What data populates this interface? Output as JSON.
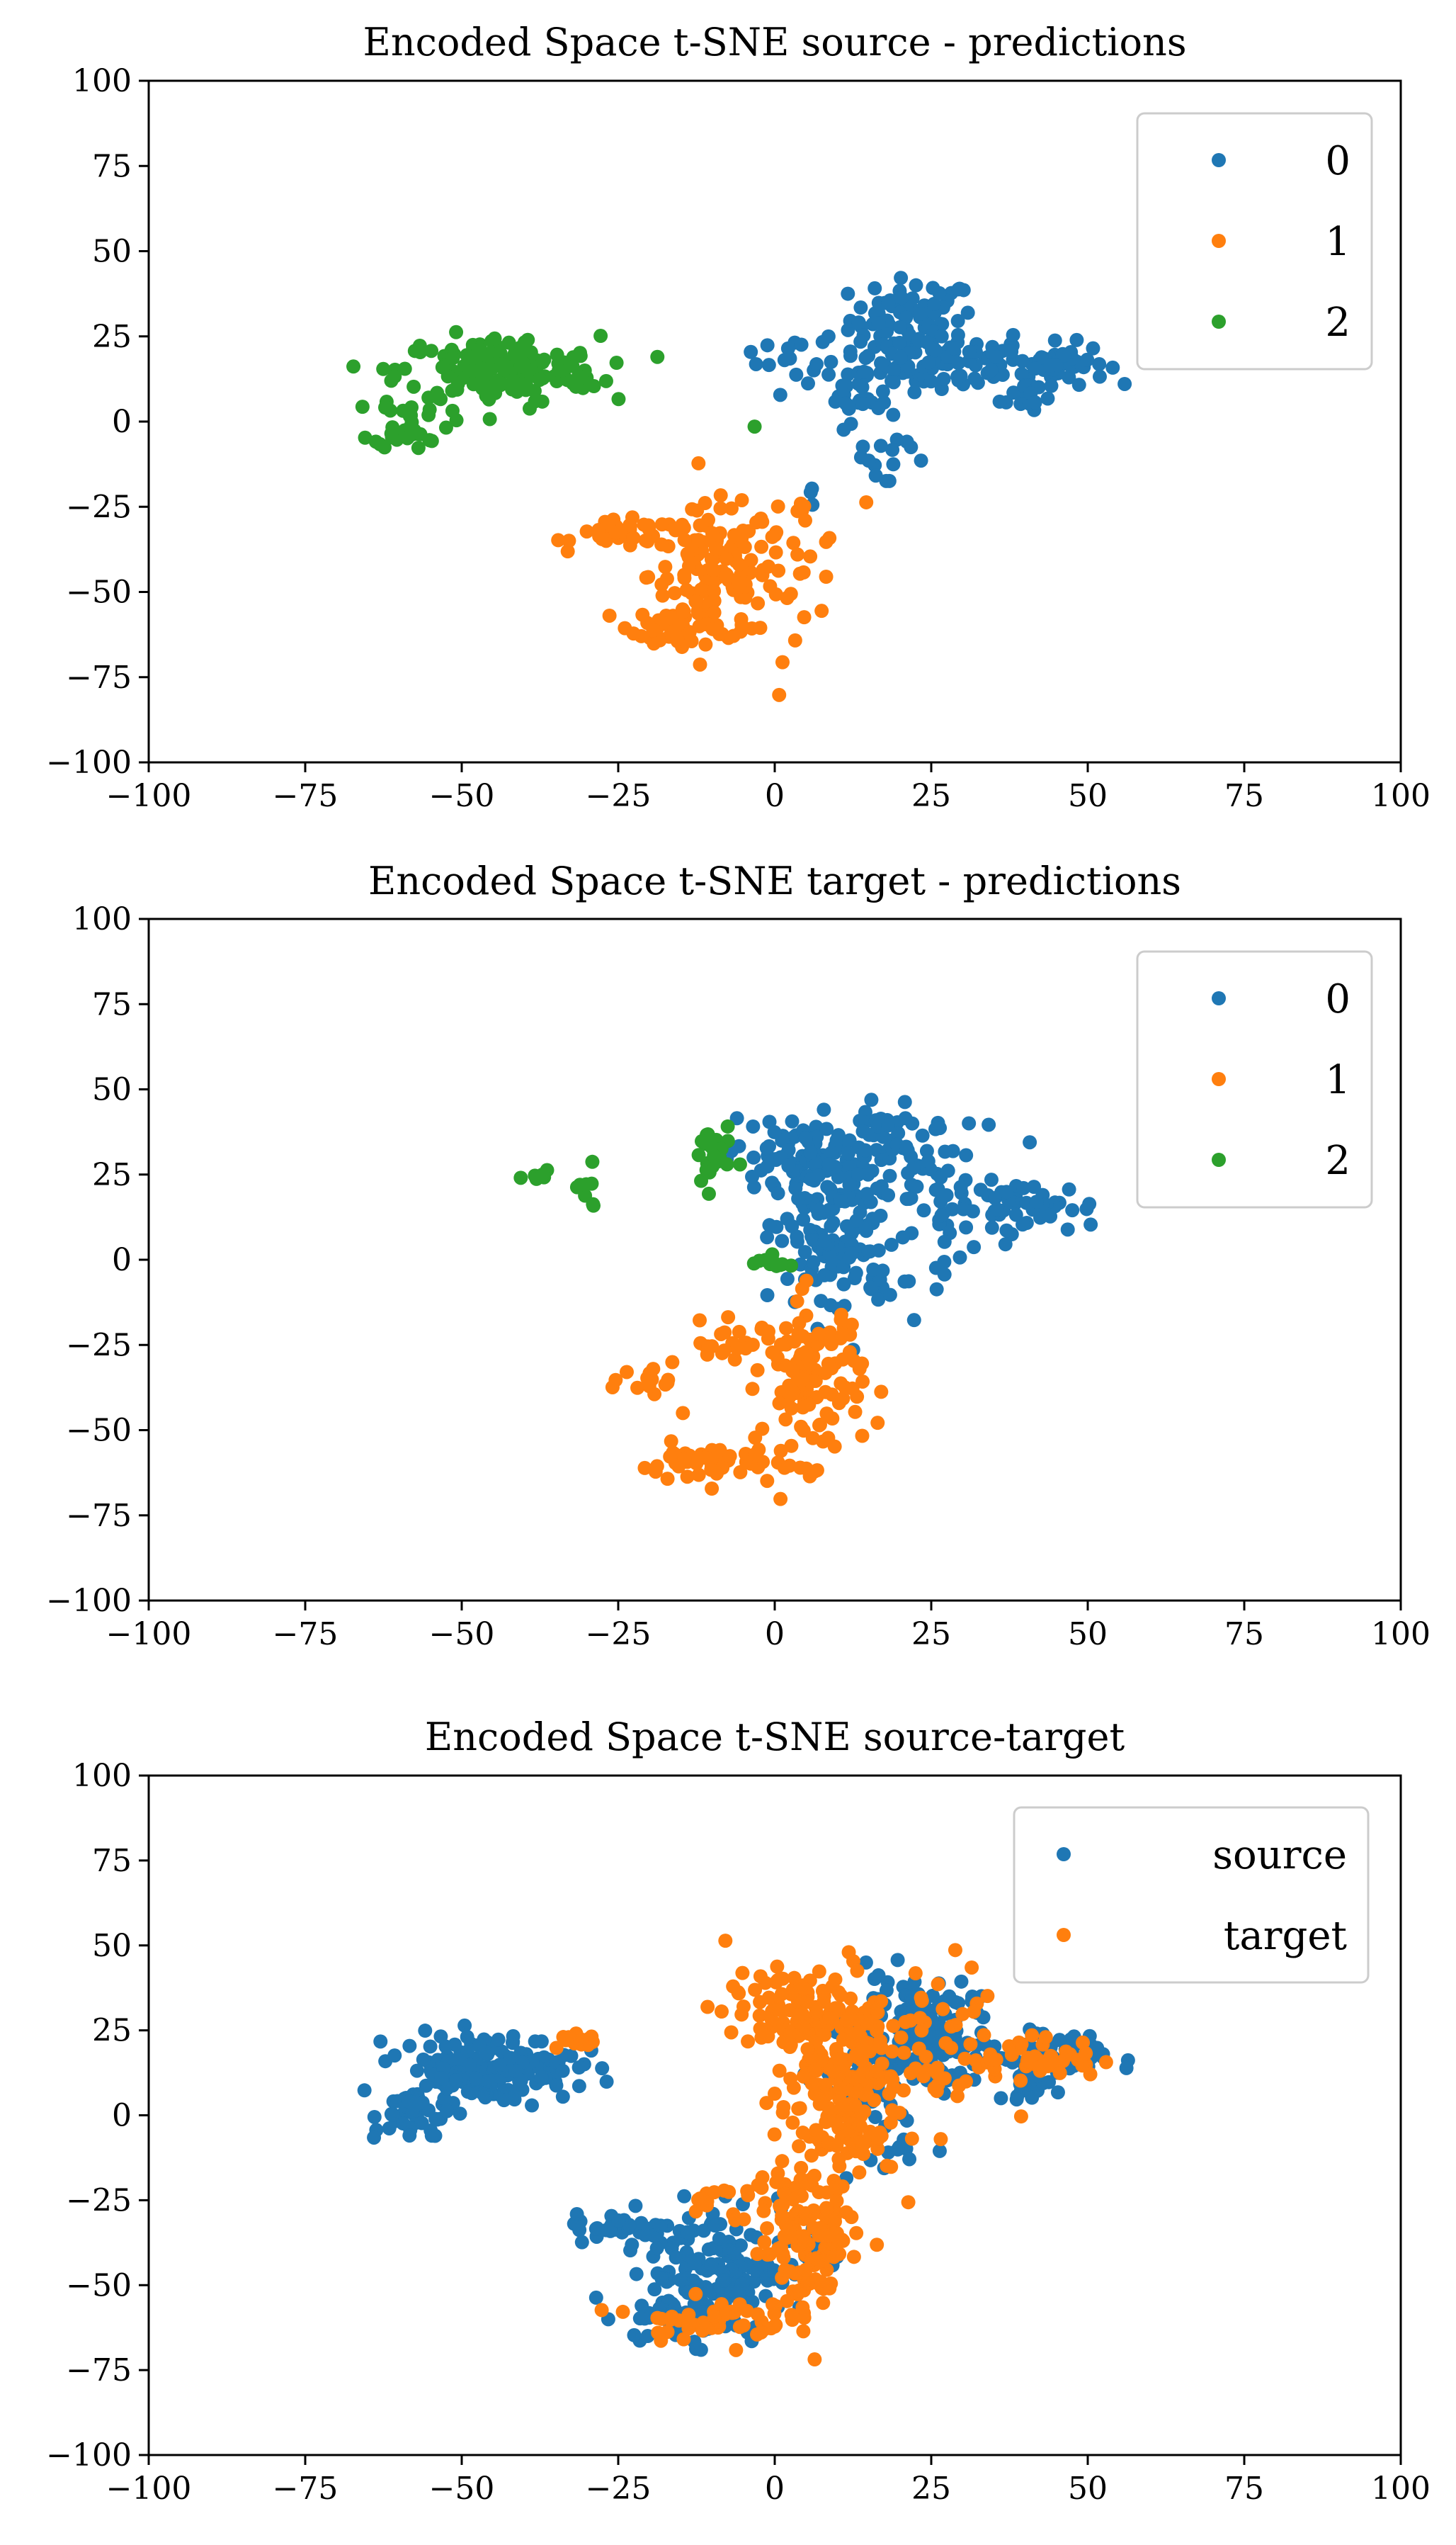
{
  "colors": {
    "c0": "#1f77b4",
    "c1": "#ff7f0e",
    "c2": "#2ca02c"
  },
  "chart_data": [
    {
      "type": "scatter",
      "title": "Encoded Space t-SNE source - predictions",
      "xlim": [
        -100,
        100
      ],
      "ylim": [
        -100,
        100
      ],
      "xticks": [
        "−100",
        "−75",
        "−50",
        "−25",
        "0",
        "25",
        "50",
        "75",
        "100"
      ],
      "yticks": [
        "100",
        "75",
        "50",
        "25",
        "0",
        "−25",
        "−50",
        "−75",
        "−100"
      ],
      "legend_position": "top-right",
      "series": [
        {
          "name": "0",
          "color": "#1f77b4",
          "clusters": [
            [
              22,
              30,
              5,
              6,
              70
            ],
            [
              26,
              18,
              8,
              5,
              90
            ],
            [
              45,
              17,
              4,
              3,
              45
            ],
            [
              40,
              8,
              2,
              3,
              15
            ],
            [
              14,
              10,
              3,
              5,
              30
            ],
            [
              5,
              18,
              4,
              3,
              15
            ],
            [
              18,
              -10,
              4,
              6,
              15
            ],
            [
              -4,
              20,
              0.5,
              0.5,
              1
            ],
            [
              6,
              -20,
              0.6,
              2,
              3
            ]
          ]
        },
        {
          "name": "1",
          "color": "#ff7f0e",
          "clusters": [
            [
              -10,
              -45,
              5,
              10,
              130
            ],
            [
              -24,
              -33,
              4,
              2,
              35
            ],
            [
              -15,
              -60,
              4,
              3,
              45
            ],
            [
              3,
              -40,
              4,
              10,
              30
            ],
            [
              15,
              -23,
              0.5,
              0.5,
              1
            ]
          ]
        },
        {
          "name": "2",
          "color": "#2ca02c",
          "clusters": [
            [
              -44,
              15,
              8,
              5,
              170
            ],
            [
              -58,
              0,
              3,
              4,
              35
            ],
            [
              -3,
              -2,
              0.4,
              0.4,
              1
            ]
          ]
        }
      ]
    },
    {
      "type": "scatter",
      "title": "Encoded Space t-SNE target - predictions",
      "xlim": [
        -100,
        100
      ],
      "ylim": [
        -100,
        100
      ],
      "xticks": [
        "−100",
        "−75",
        "−50",
        "−25",
        "0",
        "25",
        "50",
        "75",
        "100"
      ],
      "yticks": [
        "100",
        "75",
        "50",
        "25",
        "0",
        "−25",
        "−50",
        "−75",
        "−100"
      ],
      "legend_position": "top-right",
      "series": [
        {
          "name": "0",
          "color": "#1f77b4",
          "clusters": [
            [
              4,
              30,
              6,
              6,
              90
            ],
            [
              10,
              5,
              5,
              12,
              130
            ],
            [
              25,
              20,
              6,
              12,
              60
            ],
            [
              40,
              15,
              6,
              4,
              45
            ],
            [
              20,
              35,
              4,
              4,
              25
            ]
          ]
        },
        {
          "name": "1",
          "color": "#ff7f0e",
          "clusters": [
            [
              6,
              -35,
              4,
              12,
              110
            ],
            [
              -10,
              -60,
              6,
              3,
              45
            ],
            [
              -5,
              -25,
              6,
              3,
              30
            ],
            [
              -18,
              -35,
              3,
              4,
              15
            ]
          ]
        },
        {
          "name": "2",
          "color": "#2ca02c",
          "clusters": [
            [
              -38,
              24,
              1,
              1,
              6
            ],
            [
              -30,
              20,
              1,
              3,
              8
            ],
            [
              -10,
              30,
              1.5,
              5,
              30
            ],
            [
              -1,
              -1,
              2,
              1,
              10
            ]
          ]
        }
      ]
    },
    {
      "type": "scatter",
      "title": "Encoded Space t-SNE source-target",
      "xlim": [
        -100,
        100
      ],
      "ylim": [
        -100,
        100
      ],
      "xticks": [
        "−100",
        "−75",
        "−50",
        "−25",
        "0",
        "25",
        "50",
        "75",
        "100"
      ],
      "yticks": [
        "100",
        "75",
        "50",
        "25",
        "0",
        "−25",
        "−50",
        "−75",
        "−100"
      ],
      "legend_position": "top-right",
      "series": [
        {
          "name": "source",
          "color": "#1f77b4",
          "clusters": [
            [
              22,
              30,
              5,
              6,
              70
            ],
            [
              26,
              18,
              8,
              5,
              90
            ],
            [
              45,
              17,
              4,
              3,
              45
            ],
            [
              40,
              8,
              2,
              3,
              15
            ],
            [
              14,
              10,
              3,
              5,
              30
            ],
            [
              18,
              -10,
              4,
              6,
              15
            ],
            [
              -10,
              -45,
              5,
              10,
              130
            ],
            [
              -24,
              -33,
              4,
              2,
              35
            ],
            [
              -15,
              -60,
              4,
              3,
              45
            ],
            [
              3,
              -40,
              4,
              10,
              30
            ],
            [
              -46,
              14,
              7,
              5,
              170
            ],
            [
              -58,
              0,
              3,
              4,
              35
            ]
          ]
        },
        {
          "name": "target",
          "color": "#ff7f0e",
          "clusters": [
            [
              4,
              30,
              6,
              6,
              110
            ],
            [
              10,
              5,
              5,
              12,
              150
            ],
            [
              25,
              20,
              6,
              12,
              60
            ],
            [
              42,
              17,
              5,
              3,
              40
            ],
            [
              6,
              -35,
              4,
              12,
              120
            ],
            [
              -10,
              -60,
              6,
              3,
              50
            ],
            [
              -5,
              -25,
              6,
              3,
              30
            ],
            [
              -32,
              22,
              2,
              2,
              15
            ]
          ]
        }
      ]
    }
  ]
}
